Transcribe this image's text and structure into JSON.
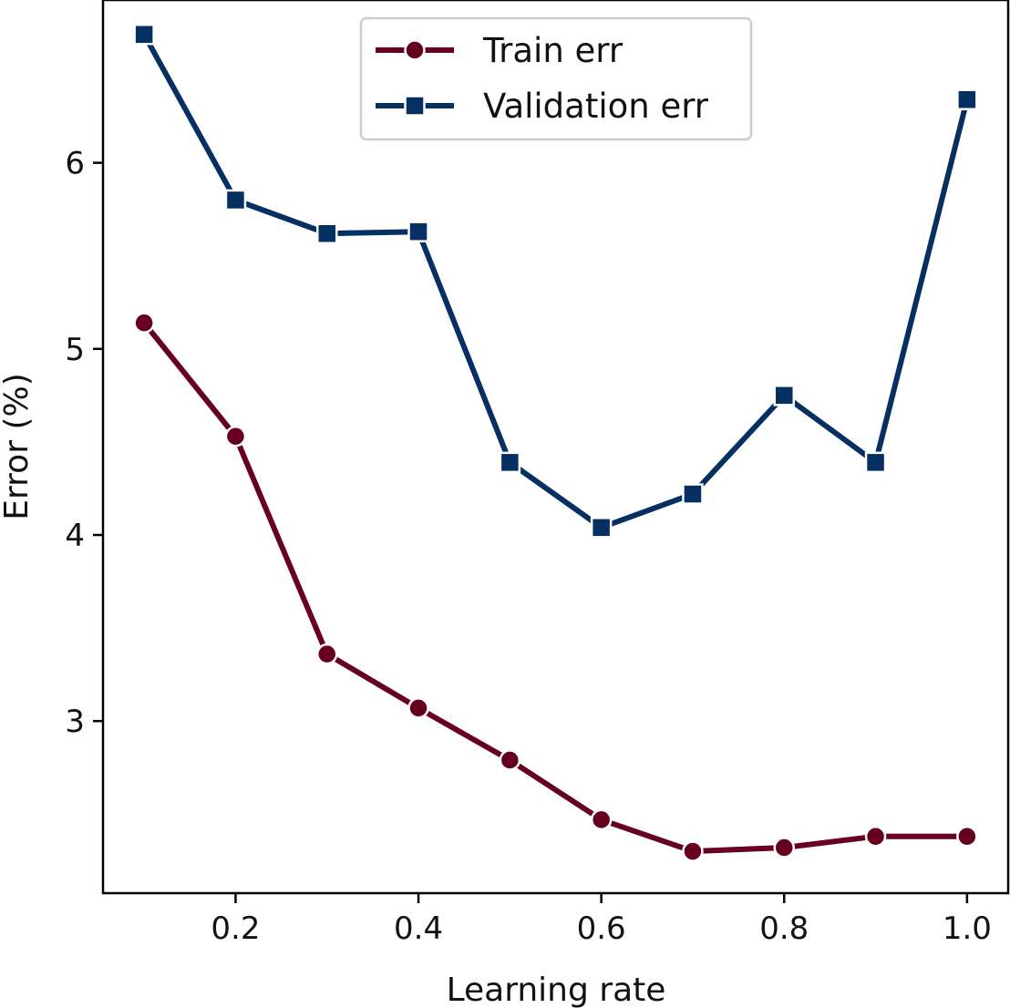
{
  "chart_data": {
    "type": "line",
    "title": "",
    "xlabel": "Learning rate",
    "ylabel": "Error (%)",
    "x": [
      0.1,
      0.2,
      0.3,
      0.4,
      0.5,
      0.6,
      0.7,
      0.8,
      0.9,
      1.0
    ],
    "xlim": [
      0.055,
      1.045
    ],
    "ylim": [
      2.075,
      6.875
    ],
    "x_ticks": [
      "0.2",
      "0.4",
      "0.6",
      "0.8",
      "1.0"
    ],
    "x_tick_values": [
      0.2,
      0.4,
      0.6,
      0.8,
      1.0
    ],
    "y_ticks": [
      "3",
      "4",
      "5",
      "6"
    ],
    "y_tick_values": [
      3,
      4,
      5,
      6
    ],
    "grid": false,
    "legend_position": "top-center",
    "series": [
      {
        "name": "Train err",
        "marker": "circle",
        "color": "#67001f",
        "values": [
          5.14,
          4.53,
          3.36,
          3.07,
          2.79,
          2.47,
          2.3,
          2.32,
          2.38,
          2.38
        ]
      },
      {
        "name": "Validation err",
        "marker": "square",
        "color": "#053061",
        "values": [
          6.69,
          5.8,
          5.62,
          5.63,
          4.39,
          4.04,
          4.22,
          4.75,
          4.39,
          6.34
        ]
      }
    ]
  }
}
